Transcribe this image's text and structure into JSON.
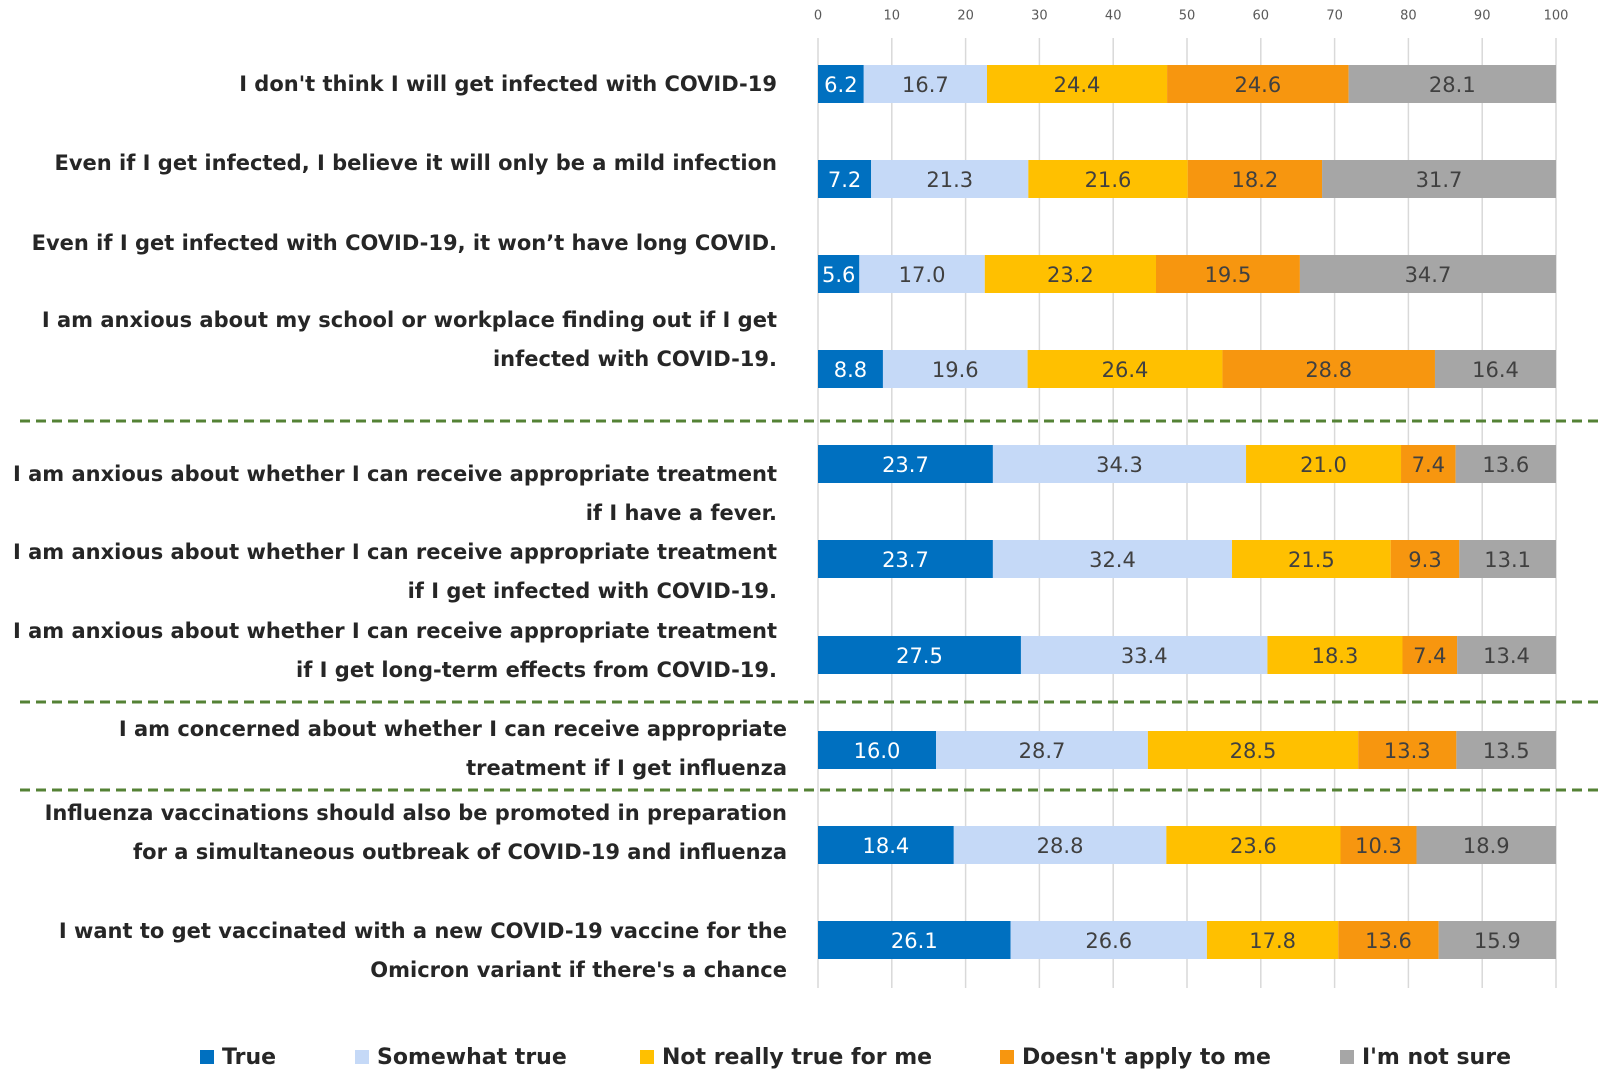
{
  "chart_data": {
    "type": "stacked-bar-horizontal",
    "categories": [
      "I don't think I will get infected with COVID-19",
      "Even if I get infected, I believe it will only be a mild infection",
      "Even if I get infected with COVID-19, it won’t have long COVID.",
      "I am anxious about my school or workplace finding out if I get infected with COVID-19.",
      "I am anxious about whether I can receive appropriate treatment if I have a fever.",
      "I am anxious about whether I can receive appropriate treatment if I get infected with COVID-19.",
      "I am anxious about whether I can receive appropriate treatment if I get long-term effects from COVID-19.",
      "I am concerned about whether I can receive appropriate treatment if I get influenza",
      "Influenza vaccinations should also be promoted in preparation for a simultaneous outbreak of COVID-19 and influenza",
      "I want to get vaccinated with a new COVID-19 vaccine for the Omicron variant if there's a chance"
    ],
    "series": [
      {
        "name": "True",
        "color": "#0070c0",
        "values": [
          6.2,
          7.2,
          5.6,
          8.8,
          23.7,
          23.7,
          27.5,
          16.0,
          18.4,
          26.1
        ],
        "value_labels": [
          "6.2",
          "7.2",
          "5.6",
          "8.8",
          "23.7",
          "23.7",
          "27.5",
          "16.0",
          "18.4",
          "26.1"
        ]
      },
      {
        "name": "Somewhat true",
        "color": "#c5d9f7",
        "values": [
          16.7,
          21.3,
          17.0,
          19.6,
          34.3,
          32.4,
          33.4,
          28.7,
          28.8,
          26.6
        ],
        "value_labels": [
          "16.7",
          "21.3",
          "17.0",
          "19.6",
          "34.3",
          "32.4",
          "33.4",
          "28.7",
          "28.8",
          "26.6"
        ]
      },
      {
        "name": "Not really true for me",
        "color": "#ffc000",
        "values": [
          24.4,
          21.6,
          23.2,
          26.4,
          21.0,
          21.5,
          18.3,
          28.5,
          23.6,
          17.8
        ],
        "value_labels": [
          "24.4",
          "21.6",
          "23.2",
          "26.4",
          "21.0",
          "21.5",
          "18.3",
          "28.5",
          "23.6",
          "17.8"
        ]
      },
      {
        "name": "Doesn't apply to me",
        "color": "#f7960f",
        "values": [
          24.6,
          18.2,
          19.5,
          28.8,
          7.4,
          9.3,
          7.4,
          13.3,
          10.3,
          13.6
        ],
        "value_labels": [
          "24.6",
          "18.2",
          "19.5",
          "28.8",
          "7.4",
          "9.3",
          "7.4",
          "13.3",
          "10.3",
          "13.6"
        ]
      },
      {
        "name": "I'm not sure",
        "color": "#a6a6a6",
        "values": [
          28.1,
          31.7,
          34.7,
          16.4,
          13.6,
          13.1,
          13.4,
          13.5,
          18.9,
          15.9
        ],
        "value_labels": [
          "28.1",
          "31.7",
          "34.7",
          "16.4",
          "13.6",
          "13.1",
          "13.4",
          "13.5",
          "18.9",
          "15.9"
        ]
      }
    ],
    "xlim": [
      0,
      100
    ],
    "xticks": [
      0,
      10,
      20,
      30,
      40,
      50,
      60,
      70,
      80,
      90,
      100
    ],
    "grid": true
  }
}
